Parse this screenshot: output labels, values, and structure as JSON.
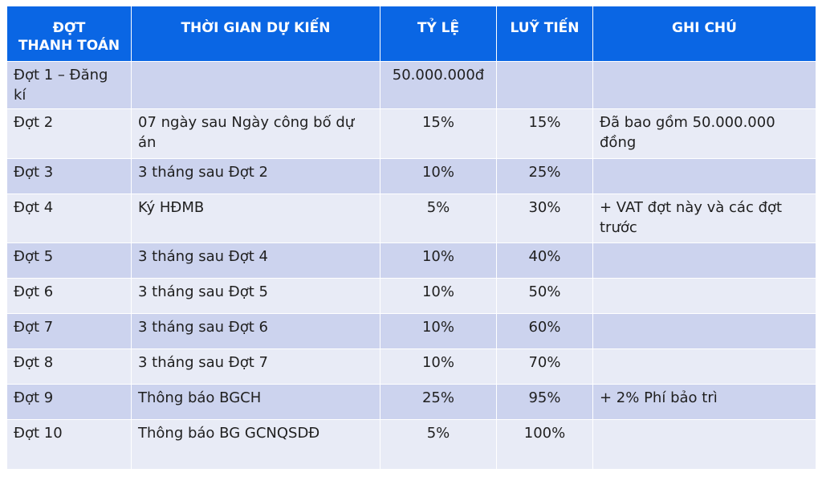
{
  "table": {
    "headers": [
      "ĐỢT\nTHANH TOÁN",
      "THỜI GIAN DỰ KIẾN",
      "TỶ LỆ",
      "LUỸ TIẾN",
      "GHI CHÚ"
    ],
    "rows": [
      [
        "Đợt 1 – Đăng kí",
        "",
        "50.000.000đ",
        "",
        ""
      ],
      [
        "Đợt 2",
        "07 ngày sau Ngày công bố dự án",
        "15%",
        "15%",
        "Đã bao gồm 50.000.000 đồng"
      ],
      [
        "Đợt 3",
        "3 tháng sau Đợt 2",
        "10%",
        "25%",
        ""
      ],
      [
        "Đợt 4",
        "Ký HĐMB",
        "5%",
        "30%",
        "+ VAT đợt này và các đợt trước"
      ],
      [
        "Đợt 5",
        "3 tháng sau Đợt 4",
        "10%",
        "40%",
        ""
      ],
      [
        "Đợt 6",
        "3 tháng sau Đợt 5",
        "10%",
        "50%",
        ""
      ],
      [
        "Đợt 7",
        "3 tháng sau Đợt 6",
        "10%",
        "60%",
        ""
      ],
      [
        "Đợt 8",
        "3 tháng sau Đợt 7",
        "10%",
        "70%",
        ""
      ],
      [
        "Đợt 9",
        "Thông báo BGCH",
        "25%",
        "95%",
        "+ 2% Phí bảo trì"
      ],
      [
        "Đợt 10",
        "Thông báo BG GCNQSDĐ",
        "5%",
        "100%",
        ""
      ]
    ]
  },
  "colors": {
    "header_bg": "#0a66e4",
    "row_dark": "#ccd3ee",
    "row_light": "#e8ebf6"
  }
}
